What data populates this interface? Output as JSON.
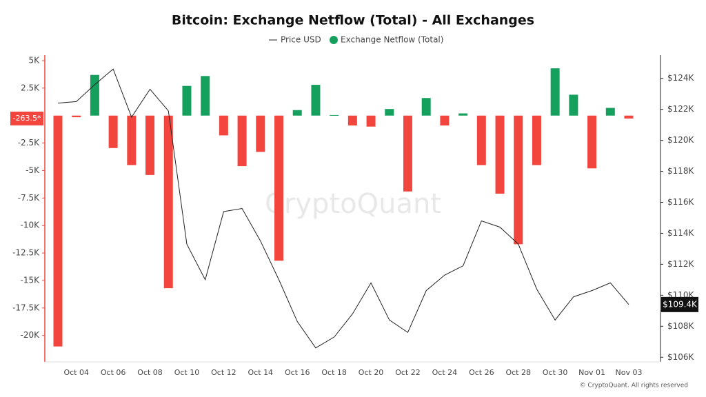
{
  "chart_data": {
    "type": "bar",
    "title": "Bitcoin: Exchange Netflow (Total) - All Exchanges",
    "categories": [
      null,
      "Oct 04",
      null,
      "Oct 06",
      null,
      "Oct 08",
      null,
      "Oct 10",
      null,
      "Oct 12",
      null,
      "Oct 14",
      null,
      "Oct 16",
      null,
      "Oct 18",
      null,
      "Oct 20",
      null,
      "Oct 22",
      null,
      "Oct 24",
      null,
      "Oct 26",
      null,
      "Oct 28",
      null,
      "Oct 30",
      null,
      "Nov 01",
      null,
      "Nov 03"
    ],
    "series": [
      {
        "name": "Exchange Netflow (Total)",
        "type": "bar",
        "positive_color": "#16a05d",
        "negative_color": "#f1453d",
        "values": [
          -21000,
          -150,
          3700,
          -2950,
          -4500,
          -5400,
          -15700,
          2700,
          3600,
          -1800,
          -4600,
          -3300,
          -13200,
          500,
          2800,
          50,
          -900,
          -1000,
          600,
          -6900,
          1600,
          -900,
          200,
          -4500,
          -7100,
          -11700,
          -4500,
          4300,
          1900,
          -4800,
          700,
          -263.5
        ],
        "value_labels": [
          null,
          null,
          null,
          null,
          null,
          null,
          null,
          null,
          null,
          null,
          null,
          null,
          null,
          null,
          null,
          null,
          null,
          null,
          null,
          null,
          null,
          null,
          null,
          null,
          null,
          null,
          null,
          null,
          null,
          null,
          null,
          "-263.5*"
        ]
      },
      {
        "name": "Price USD",
        "type": "line",
        "axis": "y2",
        "color": "#222222",
        "values": [
          122400,
          122500,
          123600,
          124600,
          121500,
          123300,
          121900,
          113300,
          111000,
          115400,
          115600,
          113500,
          111000,
          108300,
          106600,
          107300,
          108800,
          110800,
          108400,
          107600,
          110300,
          111300,
          111900,
          114800,
          114400,
          113300,
          110400,
          108400,
          109900,
          110300,
          110800,
          109400
        ],
        "value_labels": [
          null,
          null,
          null,
          null,
          null,
          null,
          null,
          null,
          null,
          null,
          null,
          null,
          null,
          null,
          null,
          null,
          null,
          null,
          null,
          null,
          null,
          null,
          null,
          null,
          null,
          null,
          null,
          null,
          null,
          null,
          null,
          "$109.4K"
        ]
      }
    ],
    "ylim": [
      -22400,
      5500
    ],
    "yticks": [
      {
        "value": 5000,
        "label": "5K"
      },
      {
        "value": 2500,
        "label": "2.5K"
      },
      {
        "value": -2500,
        "label": "-2.5K"
      },
      {
        "value": -5000,
        "label": "-5K"
      },
      {
        "value": -7500,
        "label": "-7.5K"
      },
      {
        "value": -10000,
        "label": "-10K"
      },
      {
        "value": -12500,
        "label": "-12.5K"
      },
      {
        "value": -15000,
        "label": "-15K"
      },
      {
        "value": -17500,
        "label": "-17.5K"
      },
      {
        "value": -20000,
        "label": "-20K"
      }
    ],
    "y2lim": [
      105700,
      125500
    ],
    "y2ticks": [
      {
        "value": 106000,
        "label": "$106K"
      },
      {
        "value": 108000,
        "label": "$108K"
      },
      {
        "value": 110000,
        "label": "$110K"
      },
      {
        "value": 112000,
        "label": "$112K"
      },
      {
        "value": 114000,
        "label": "$114K"
      },
      {
        "value": 116000,
        "label": "$116K"
      },
      {
        "value": 118000,
        "label": "$118K"
      },
      {
        "value": 120000,
        "label": "$120K"
      },
      {
        "value": 122000,
        "label": "$122K"
      },
      {
        "value": 124000,
        "label": "$124K"
      }
    ],
    "watermark": "CryptoQuant",
    "footer": "© CryptoQuant. All rights reserved"
  }
}
